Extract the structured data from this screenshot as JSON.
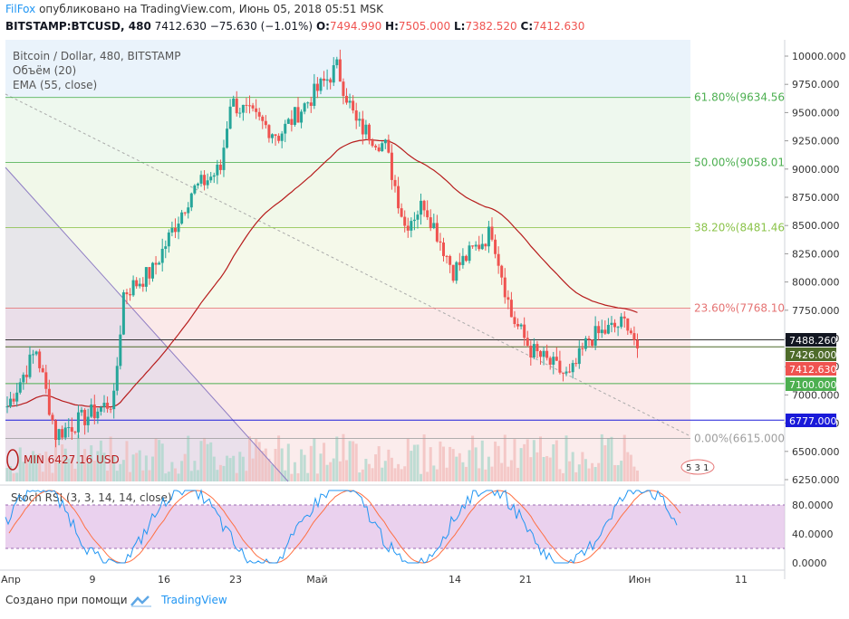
{
  "header": {
    "brand": "FilFox",
    "published": "опубликовано на TradingView.com, Июнь 05, 2018 05:51 MSK",
    "symbol": "BITSTAMP:BTCUSD, 480",
    "last": "7412.630",
    "change": "−75.630 (−1.01%)",
    "open_label": "O:",
    "open": "7494.990",
    "high_label": "H:",
    "high": "7505.000",
    "low_label": "L:",
    "low": "7382.520",
    "close_label": "C:",
    "close": "7412.630"
  },
  "legend": {
    "title": "Bitcoin / Dollar, 480, BITSTAMP",
    "volume": "Объём (20)",
    "ema": "EMA (55, close)"
  },
  "min_label": "MIN 6427.16 USD",
  "fib_levels": [
    {
      "label": "61.80%(9634.56",
      "price": 9634.56
    },
    {
      "label": "50.00%(9058.01",
      "price": 9058.01
    },
    {
      "label": "38.20%(8481.46",
      "price": 8481.46
    },
    {
      "label": "23.60%(7768.10",
      "price": 7768.1
    },
    {
      "label": "0.00%(6615.000",
      "price": 6615.0
    }
  ],
  "price_tags": [
    {
      "label": "7488.260",
      "price": 7488.26,
      "color": "#131722"
    },
    {
      "label": "7426.000",
      "price": 7426.0,
      "color": "#4e6b2a"
    },
    {
      "label": "7412.630",
      "price": 7412.63,
      "color": "#ef5350"
    },
    {
      "label": "7100.000",
      "price": 7100.0,
      "color": "#4caf50"
    },
    {
      "label": "6777.000",
      "price": 6777.0,
      "color": "#1a1ad9"
    }
  ],
  "colors": {
    "up": "#26a69a",
    "down": "#ef5350",
    "ema": "#b71c1c",
    "rsi_k": "#2196f3",
    "rsi_d": "#ff7043"
  },
  "events_badge": "5 3 1",
  "stoch": {
    "title": "Stoch RSI (3, 3, 14, 14, close)",
    "ticks": [
      "80.0000",
      "40.0000",
      "0.0000"
    ],
    "band": [
      20,
      80
    ]
  },
  "x_axis": [
    "Апр",
    "9",
    "16",
    "23",
    "Май",
    "14",
    "21",
    "Июн",
    "11"
  ],
  "footer": {
    "created": "Создано при помощи",
    "brand": "TradingView"
  },
  "chart_data": {
    "type": "candlestick",
    "y_ticks": [
      10000,
      9750,
      9500,
      9250,
      9000,
      8750,
      8500,
      8250,
      8000,
      7750,
      7500,
      7250,
      7000,
      6750,
      6500,
      6250
    ],
    "y_tick_labels": [
      "10000.000",
      "9750.000",
      "9500.000",
      "9250.000",
      "9000.000",
      "8750.000",
      "8500.000",
      "8250.000",
      "8000.000",
      "7750.000",
      "7500.000",
      "7250.000",
      "7000.000",
      "6750.000",
      "6500.000",
      "6250.000"
    ],
    "ylim": [
      6200,
      10150
    ],
    "key_closes": [
      {
        "date": "2018-04-01",
        "close": 6900
      },
      {
        "date": "2018-04-04",
        "close": 7400
      },
      {
        "date": "2018-04-06",
        "close": 6650
      },
      {
        "date": "2018-04-12",
        "close": 6950
      },
      {
        "date": "2018-04-13",
        "close": 7900
      },
      {
        "date": "2018-04-16",
        "close": 8100
      },
      {
        "date": "2018-04-20",
        "close": 8800
      },
      {
        "date": "2018-04-23",
        "close": 9000
      },
      {
        "date": "2018-04-24",
        "close": 9600
      },
      {
        "date": "2018-04-29",
        "close": 9300
      },
      {
        "date": "2018-05-03",
        "close": 9700
      },
      {
        "date": "2018-05-05",
        "close": 9900
      },
      {
        "date": "2018-05-07",
        "close": 9400
      },
      {
        "date": "2018-05-10",
        "close": 9200
      },
      {
        "date": "2018-05-12",
        "close": 8500
      },
      {
        "date": "2018-05-14",
        "close": 8700
      },
      {
        "date": "2018-05-17",
        "close": 8100
      },
      {
        "date": "2018-05-21",
        "close": 8450
      },
      {
        "date": "2018-05-23",
        "close": 7700
      },
      {
        "date": "2018-05-25",
        "close": 7400
      },
      {
        "date": "2018-05-29",
        "close": 7150
      },
      {
        "date": "2018-05-31",
        "close": 7500
      },
      {
        "date": "2018-06-04",
        "close": 7650
      },
      {
        "date": "2018-06-05",
        "close": 7412.63
      }
    ]
  }
}
